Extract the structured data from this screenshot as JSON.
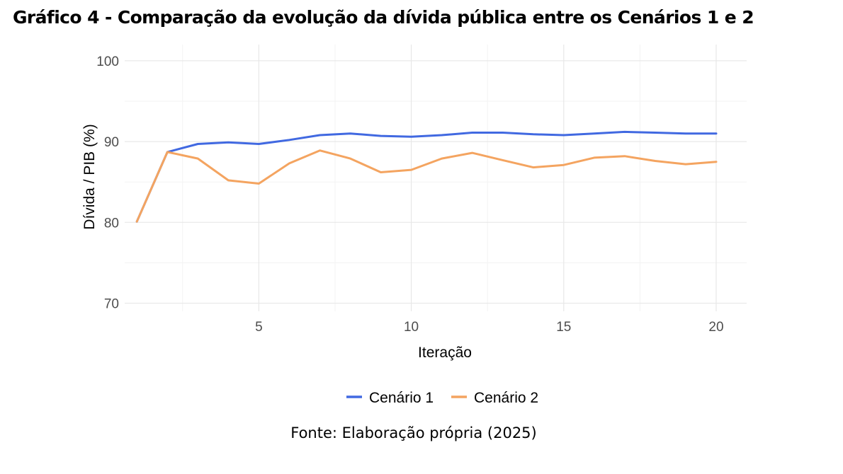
{
  "title": "Gráfico 4 - Comparação da evolução da dívida pública entre os Cenários 1 e 2",
  "source": "Fonte: Elaboração própria (2025)",
  "chart_data": {
    "type": "line",
    "xlabel": "Iteração",
    "ylabel": "Dívida / PIB (%)",
    "xlim": [
      0.6,
      21
    ],
    "ylim": [
      69,
      102
    ],
    "x_ticks": [
      5,
      10,
      15,
      20
    ],
    "y_ticks": [
      70,
      80,
      90,
      100
    ],
    "grid": true,
    "legend_position": "bottom",
    "x": [
      1,
      2,
      3,
      4,
      5,
      6,
      7,
      8,
      9,
      10,
      11,
      12,
      13,
      14,
      15,
      16,
      17,
      18,
      19,
      20
    ],
    "series": [
      {
        "name": "Cenário 1",
        "color": "#4169e1",
        "values": [
          80.1,
          88.7,
          89.7,
          89.9,
          89.7,
          90.2,
          90.8,
          91.0,
          90.7,
          90.6,
          90.8,
          91.1,
          91.1,
          90.9,
          90.8,
          91.0,
          91.2,
          91.1,
          91.0,
          91.0
        ]
      },
      {
        "name": "Cenário 2",
        "color": "#f4a460",
        "values": [
          80.1,
          88.7,
          87.9,
          85.2,
          84.8,
          87.3,
          88.9,
          87.9,
          86.2,
          86.5,
          87.9,
          88.6,
          87.7,
          86.8,
          87.1,
          88.0,
          88.2,
          87.6,
          87.2,
          87.5
        ]
      }
    ]
  }
}
